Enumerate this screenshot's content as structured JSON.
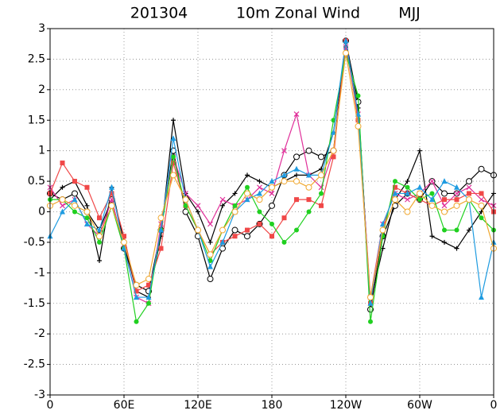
{
  "chart_data": {
    "type": "line",
    "title": [
      "201304",
      "10m Zonal Wind",
      "MJJ"
    ],
    "x": [
      0,
      10,
      20,
      30,
      40,
      50,
      60,
      70,
      80,
      90,
      100,
      110,
      120,
      130,
      140,
      150,
      160,
      170,
      180,
      190,
      200,
      210,
      220,
      230,
      240,
      250,
      260,
      270,
      280,
      290,
      300,
      310,
      320,
      330,
      340,
      350,
      360
    ],
    "series": [
      {
        "color": "#000000",
        "marker": "plus",
        "values": [
          0.2,
          0.4,
          0.5,
          0.1,
          -0.8,
          0.4,
          -0.5,
          -1.3,
          -1.4,
          -0.4,
          1.5,
          0.3,
          0.0,
          -0.5,
          0.1,
          0.3,
          0.6,
          0.5,
          0.4,
          0.5,
          0.6,
          0.6,
          0.7,
          1.3,
          2.7,
          1.7,
          -1.5,
          -0.6,
          0.2,
          0.5,
          1.0,
          -0.4,
          -0.5,
          -0.6,
          -0.3,
          0.0,
          0.3
        ]
      },
      {
        "color": "#000000",
        "marker": "open-circle",
        "values": [
          0.3,
          0.2,
          0.3,
          0.0,
          -0.3,
          0.2,
          -0.6,
          -1.2,
          -1.3,
          -0.3,
          1.0,
          0.0,
          -0.4,
          -1.1,
          -0.6,
          -0.3,
          -0.4,
          -0.2,
          0.1,
          0.6,
          0.9,
          1.0,
          0.9,
          1.0,
          2.8,
          1.8,
          -1.6,
          -0.4,
          0.1,
          0.3,
          0.2,
          0.5,
          0.3,
          0.3,
          0.5,
          0.7,
          0.6
        ]
      },
      {
        "color": "#e0309a",
        "marker": "cross",
        "values": [
          0.4,
          0.1,
          0.2,
          -0.2,
          -0.4,
          0.2,
          -0.6,
          -1.4,
          -1.5,
          -0.2,
          0.9,
          0.3,
          0.1,
          -0.2,
          0.2,
          0.1,
          0.2,
          0.4,
          0.3,
          1.0,
          1.6,
          0.6,
          0.4,
          1.0,
          2.7,
          1.6,
          -1.4,
          -0.2,
          0.3,
          0.2,
          0.3,
          0.5,
          0.1,
          0.3,
          0.4,
          0.2,
          0.1
        ]
      },
      {
        "color": "#f04848",
        "marker": "square",
        "values": [
          0.3,
          0.8,
          0.5,
          0.4,
          -0.1,
          0.3,
          -0.4,
          -1.3,
          -1.2,
          -0.6,
          0.8,
          0.1,
          -0.3,
          -0.7,
          -0.5,
          -0.4,
          -0.3,
          -0.2,
          -0.4,
          -0.1,
          0.2,
          0.2,
          0.1,
          0.9,
          2.8,
          1.5,
          -1.5,
          -0.3,
          0.4,
          0.3,
          0.2,
          0.1,
          0.2,
          0.2,
          0.3,
          0.3,
          0.0
        ]
      },
      {
        "color": "#20d020",
        "marker": "dot",
        "values": [
          0.2,
          0.2,
          0.0,
          -0.1,
          -0.5,
          0.1,
          -0.6,
          -1.8,
          -1.5,
          -0.3,
          0.9,
          0.1,
          -0.3,
          -0.8,
          -0.3,
          0.1,
          0.4,
          0.0,
          -0.2,
          -0.5,
          -0.3,
          0.0,
          0.3,
          1.5,
          2.6,
          1.9,
          -1.8,
          -0.4,
          0.5,
          0.4,
          0.2,
          0.3,
          -0.3,
          -0.3,
          0.2,
          -0.1,
          -0.3
        ]
      },
      {
        "color": "#1e9be0",
        "marker": "triangle",
        "values": [
          -0.4,
          0.0,
          0.2,
          -0.2,
          -0.3,
          0.4,
          -0.6,
          -1.4,
          -1.4,
          -0.3,
          1.2,
          0.2,
          -0.3,
          -0.9,
          -0.5,
          0.0,
          0.2,
          0.3,
          0.5,
          0.6,
          0.7,
          0.6,
          0.6,
          1.3,
          2.8,
          1.6,
          -1.5,
          -0.2,
          0.3,
          0.3,
          0.4,
          0.2,
          0.5,
          0.4,
          0.2,
          -1.4,
          -0.5
        ]
      },
      {
        "color": "#f0a830",
        "marker": "open-circle",
        "values": [
          0.1,
          0.2,
          0.1,
          0.0,
          -0.4,
          0.1,
          -0.5,
          -1.2,
          -1.1,
          -0.1,
          0.6,
          0.2,
          -0.3,
          -0.7,
          -0.3,
          0.0,
          0.3,
          0.2,
          0.4,
          0.5,
          0.5,
          0.4,
          0.6,
          1.0,
          2.6,
          1.4,
          -1.4,
          -0.3,
          0.2,
          0.0,
          0.3,
          0.1,
          0.0,
          0.1,
          0.2,
          0.1,
          -0.6
        ]
      }
    ],
    "xlim": [
      0,
      360
    ],
    "xticks": [
      {
        "value": 0,
        "label": "0"
      },
      {
        "value": 60,
        "label": "60E"
      },
      {
        "value": 120,
        "label": "120E"
      },
      180,
      {
        "value": 240,
        "label": "120W"
      },
      {
        "value": 300,
        "label": "60W"
      },
      {
        "value": 360,
        "label": "0"
      }
    ],
    "ylim": [
      -3,
      3
    ],
    "yticks": [
      -3,
      -2.5,
      -2,
      -1.5,
      -1,
      -0.5,
      0,
      0.5,
      1,
      1.5,
      2,
      2.5,
      3
    ],
    "grid": true
  }
}
